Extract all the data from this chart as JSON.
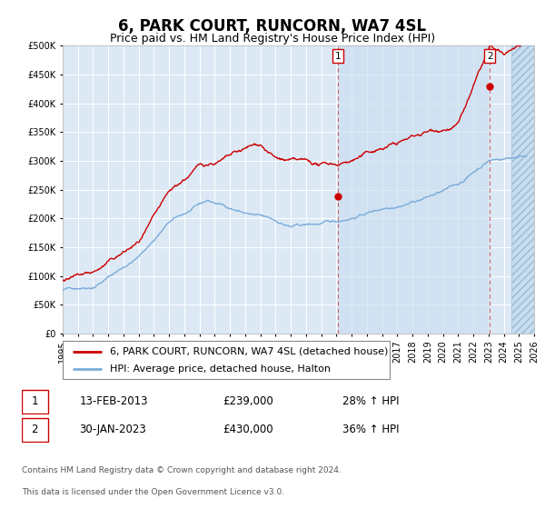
{
  "title": "6, PARK COURT, RUNCORN, WA7 4SL",
  "subtitle": "Price paid vs. HM Land Registry's House Price Index (HPI)",
  "x_start_year": 1995,
  "x_end_year": 2026,
  "ylim": [
    0,
    500000
  ],
  "yticks": [
    0,
    50000,
    100000,
    150000,
    200000,
    250000,
    300000,
    350000,
    400000,
    450000,
    500000
  ],
  "background_color": "#ffffff",
  "plot_bg_color": "#dce9f5",
  "grid_color": "#ffffff",
  "red_line_color": "#cc0000",
  "blue_line_color": "#7aacda",
  "sale1_year": 2013.11,
  "sale1_price": 239000,
  "sale1_label": "1",
  "sale1_date": "13-FEB-2013",
  "sale1_hpi": "28% ↑ HPI",
  "sale2_year": 2023.08,
  "sale2_price": 430000,
  "sale2_label": "2",
  "sale2_date": "30-JAN-2023",
  "sale2_hpi": "36% ↑ HPI",
  "legend_line1": "6, PARK COURT, RUNCORN, WA7 4SL (detached house)",
  "legend_line2": "HPI: Average price, detached house, Halton",
  "footer1": "Contains HM Land Registry data © Crown copyright and database right 2024.",
  "footer2": "This data is licensed under the Open Government Licence v3.0.",
  "title_fontsize": 12,
  "subtitle_fontsize": 9,
  "tick_fontsize": 7,
  "legend_fontsize": 8,
  "table_fontsize": 8.5,
  "footer_fontsize": 6.5
}
